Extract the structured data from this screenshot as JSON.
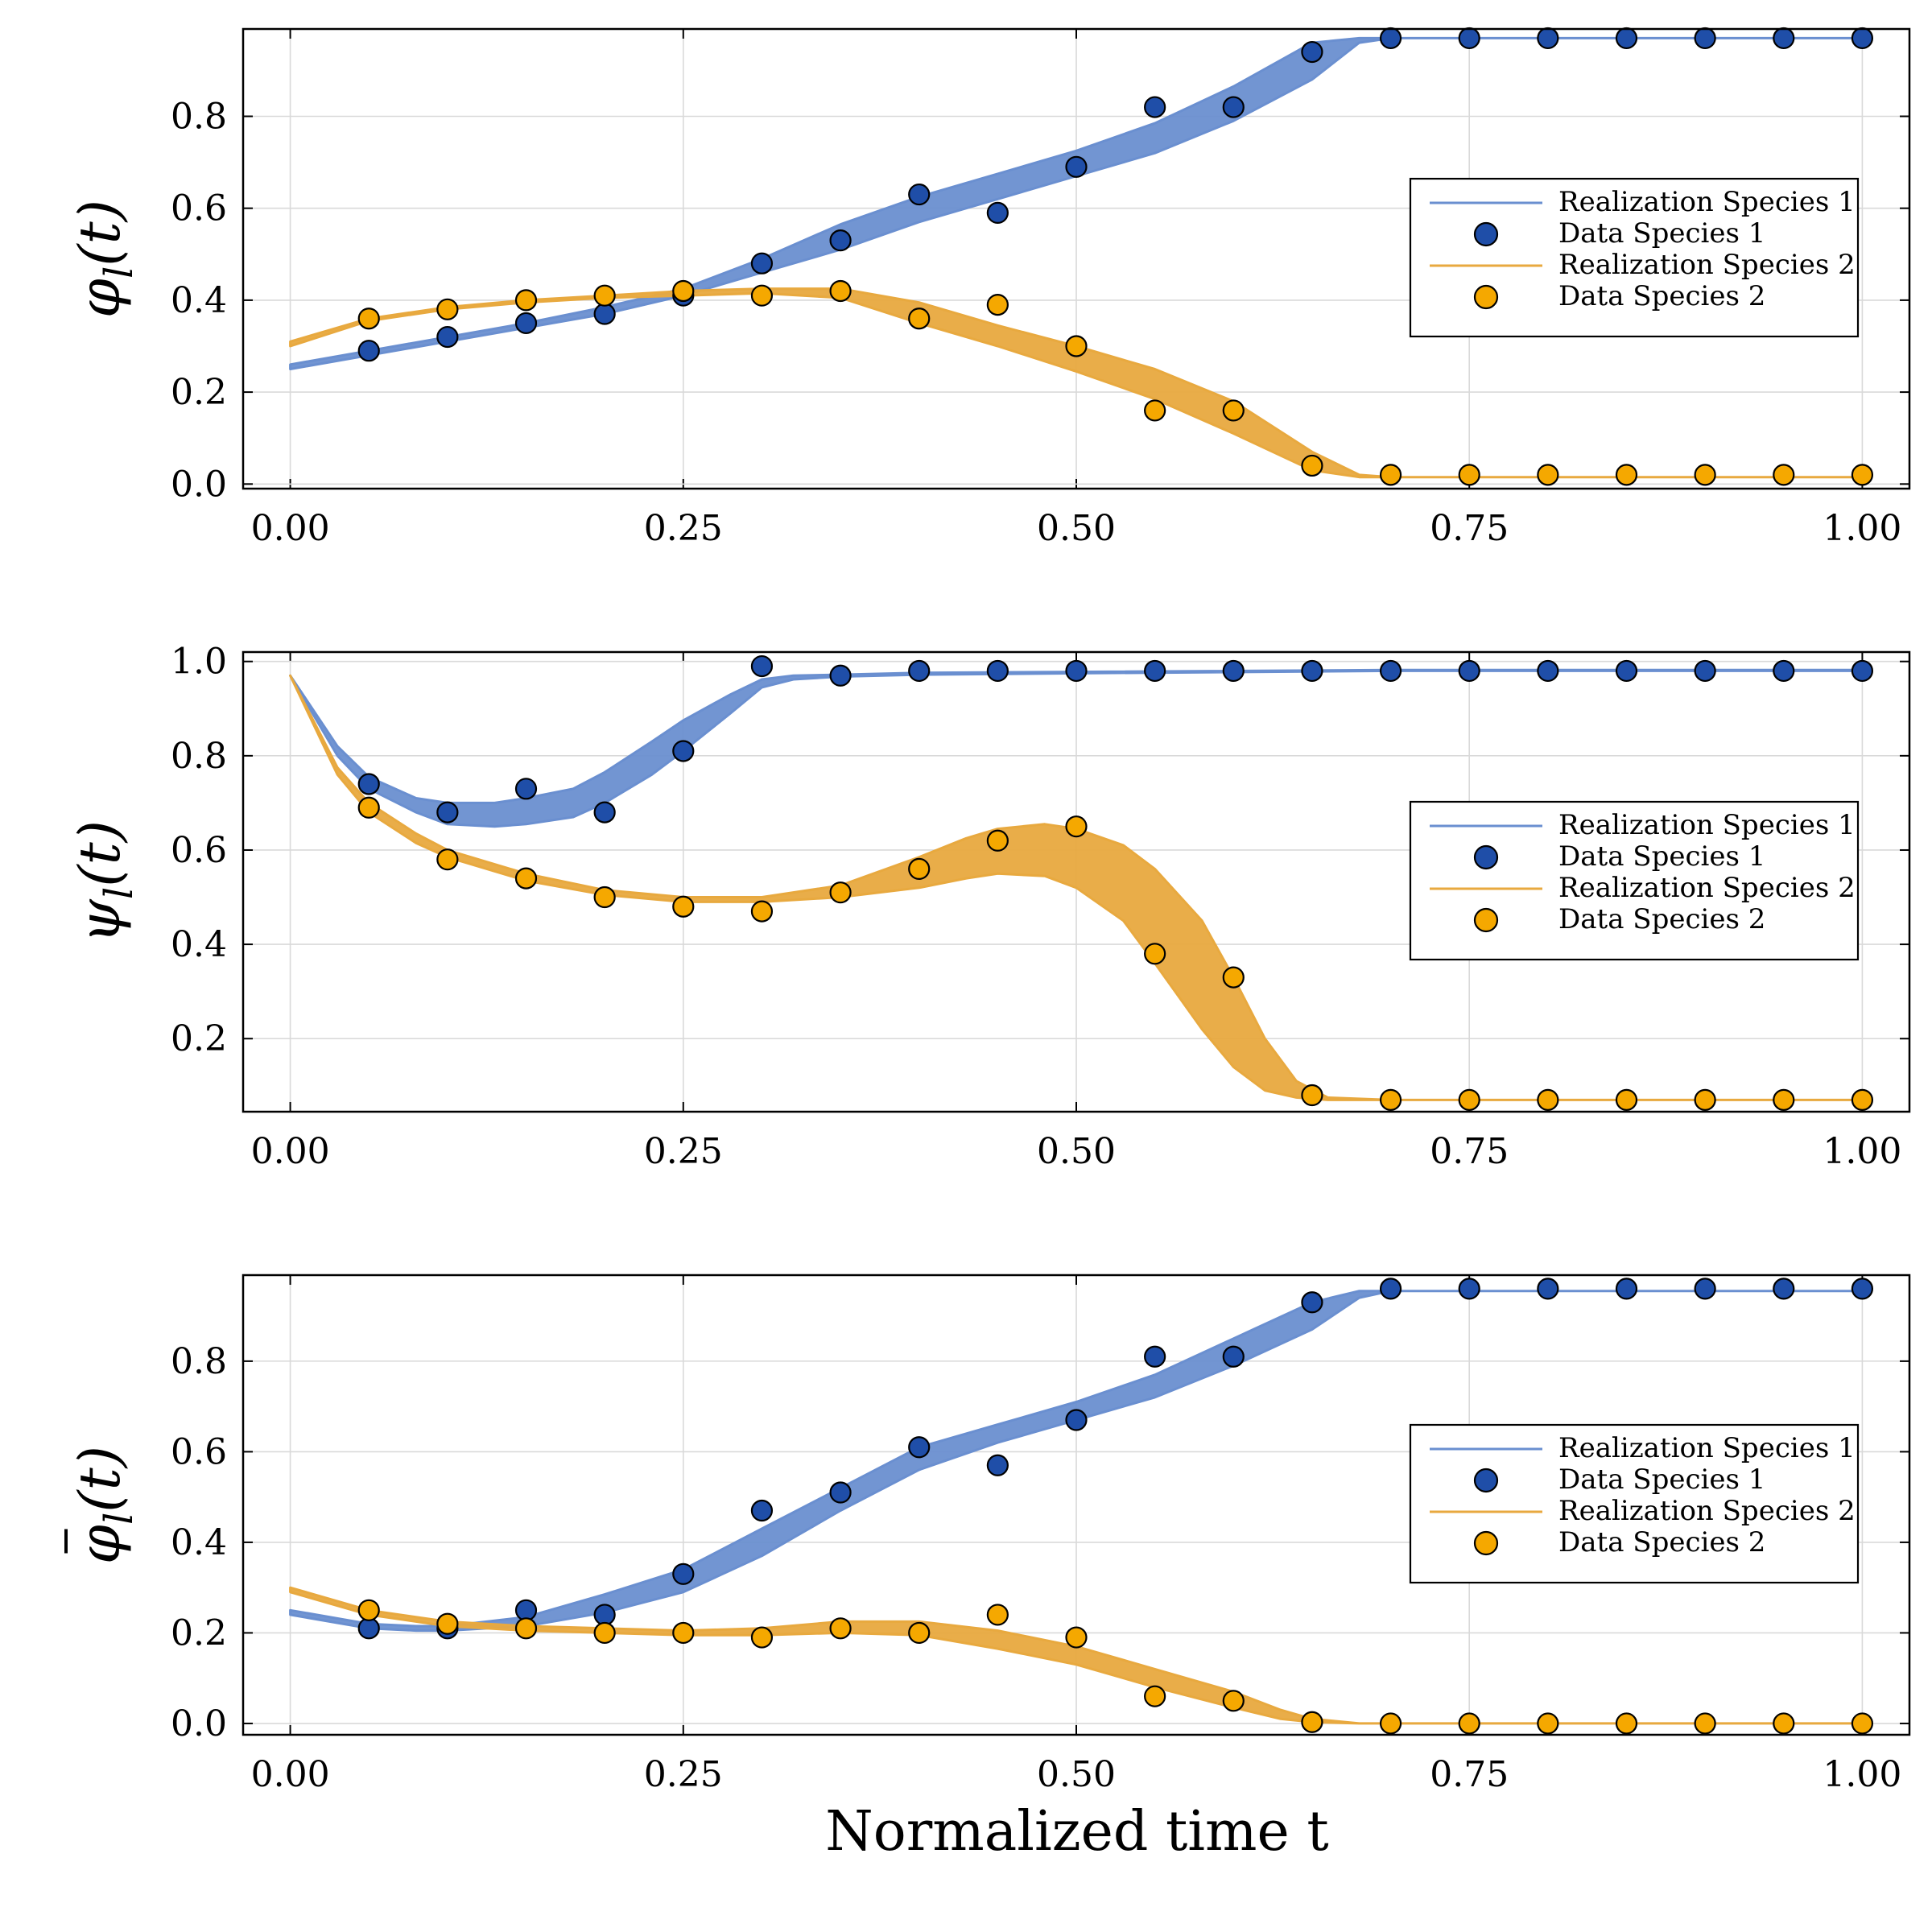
{
  "xlabel": "Normalized time t",
  "colors": {
    "species1_band": "#6a8fd0",
    "species1_marker": "#1f4ea8",
    "species2_band": "#e8a93f",
    "species2_marker": "#f5a800",
    "marker_edge": "#000000",
    "grid": "#d9d9d9"
  },
  "legend": [
    "Realization Species 1",
    "Data Species 1",
    "Realization Species 2",
    "Data Species 2"
  ],
  "chart_data": [
    {
      "type": "line",
      "ylabel_symbol": "φ",
      "ylabel_sub": "l",
      "ylabel_arg": "(t)",
      "overline": false,
      "xlim": [
        -0.03,
        1.03
      ],
      "ylim": [
        -0.01,
        0.99
      ],
      "xticks": [
        "0.00",
        "0.25",
        "0.50",
        "0.75",
        "1.00"
      ],
      "yticks": [
        "0.0",
        "0.2",
        "0.4",
        "0.6",
        "0.8"
      ],
      "data_x": [
        0.05,
        0.1,
        0.15,
        0.2,
        0.25,
        0.3,
        0.35,
        0.4,
        0.45,
        0.5,
        0.55,
        0.6,
        0.65,
        0.7,
        0.75,
        0.8,
        0.85,
        0.9,
        0.95,
        1.0
      ],
      "series": [
        {
          "name": "Species 1",
          "band_x": [
            0.0,
            0.05,
            0.1,
            0.15,
            0.2,
            0.25,
            0.3,
            0.35,
            0.4,
            0.45,
            0.5,
            0.55,
            0.6,
            0.65,
            0.68,
            0.7,
            1.0
          ],
          "band_lo": [
            0.25,
            0.28,
            0.31,
            0.34,
            0.37,
            0.41,
            0.46,
            0.51,
            0.57,
            0.62,
            0.67,
            0.72,
            0.79,
            0.88,
            0.96,
            0.97,
            0.97
          ],
          "band_hi": [
            0.26,
            0.29,
            0.32,
            0.35,
            0.385,
            0.425,
            0.49,
            0.565,
            0.625,
            0.675,
            0.725,
            0.785,
            0.865,
            0.96,
            0.97,
            0.97,
            0.97
          ],
          "data_y": [
            0.29,
            0.32,
            0.35,
            0.37,
            0.41,
            0.48,
            0.53,
            0.63,
            0.59,
            0.69,
            0.82,
            0.82,
            0.94,
            0.97,
            0.97,
            0.97,
            0.97,
            0.97,
            0.97,
            0.97
          ]
        },
        {
          "name": "Species 2",
          "band_x": [
            0.0,
            0.05,
            0.1,
            0.15,
            0.2,
            0.25,
            0.3,
            0.35,
            0.4,
            0.45,
            0.5,
            0.55,
            0.6,
            0.65,
            0.68,
            0.7,
            1.0
          ],
          "band_lo": [
            0.3,
            0.355,
            0.38,
            0.395,
            0.405,
            0.41,
            0.415,
            0.405,
            0.35,
            0.3,
            0.245,
            0.185,
            0.11,
            0.03,
            0.015,
            0.015,
            0.015
          ],
          "band_hi": [
            0.31,
            0.36,
            0.385,
            0.4,
            0.41,
            0.42,
            0.425,
            0.425,
            0.395,
            0.345,
            0.3,
            0.25,
            0.18,
            0.07,
            0.02,
            0.015,
            0.015
          ],
          "data_y": [
            0.36,
            0.38,
            0.4,
            0.41,
            0.42,
            0.41,
            0.42,
            0.36,
            0.39,
            0.3,
            0.16,
            0.16,
            0.04,
            0.02,
            0.02,
            0.02,
            0.02,
            0.02,
            0.02,
            0.02
          ]
        }
      ]
    },
    {
      "type": "line",
      "ylabel_symbol": "ψ",
      "ylabel_sub": "l",
      "ylabel_arg": "(t)",
      "overline": false,
      "xlim": [
        -0.03,
        1.03
      ],
      "ylim": [
        0.045,
        1.02
      ],
      "xticks": [
        "0.00",
        "0.25",
        "0.50",
        "0.75",
        "1.00"
      ],
      "yticks": [
        "0.2",
        "0.4",
        "0.6",
        "0.8",
        "1.0"
      ],
      "data_x": [
        0.05,
        0.1,
        0.15,
        0.2,
        0.25,
        0.3,
        0.35,
        0.4,
        0.45,
        0.5,
        0.55,
        0.6,
        0.65,
        0.7,
        0.75,
        0.8,
        0.85,
        0.9,
        0.95,
        1.0
      ],
      "series": [
        {
          "name": "Species 1",
          "band_x": [
            0.0,
            0.03,
            0.05,
            0.08,
            0.1,
            0.13,
            0.15,
            0.18,
            0.2,
            0.23,
            0.25,
            0.28,
            0.3,
            0.32,
            0.35,
            0.4,
            0.5,
            0.7,
            1.0
          ],
          "band_lo": [
            0.97,
            0.8,
            0.73,
            0.68,
            0.655,
            0.65,
            0.655,
            0.67,
            0.7,
            0.76,
            0.81,
            0.89,
            0.945,
            0.962,
            0.968,
            0.972,
            0.975,
            0.98,
            0.98
          ],
          "band_hi": [
            0.97,
            0.82,
            0.755,
            0.71,
            0.7,
            0.7,
            0.71,
            0.73,
            0.765,
            0.83,
            0.875,
            0.93,
            0.962,
            0.97,
            0.972,
            0.976,
            0.978,
            0.982,
            0.982
          ],
          "data_y": [
            0.74,
            0.68,
            0.73,
            0.68,
            0.81,
            0.99,
            0.97,
            0.98,
            0.98,
            0.98,
            0.98,
            0.98,
            0.98,
            0.98,
            0.98,
            0.98,
            0.98,
            0.98,
            0.98,
            0.98
          ]
        },
        {
          "name": "Species 2",
          "band_x": [
            0.0,
            0.03,
            0.05,
            0.08,
            0.1,
            0.15,
            0.2,
            0.25,
            0.3,
            0.35,
            0.4,
            0.43,
            0.45,
            0.48,
            0.5,
            0.53,
            0.55,
            0.58,
            0.6,
            0.62,
            0.64,
            0.66,
            0.7,
            1.0
          ],
          "band_lo": [
            0.97,
            0.76,
            0.68,
            0.615,
            0.585,
            0.535,
            0.505,
            0.49,
            0.49,
            0.5,
            0.52,
            0.54,
            0.55,
            0.545,
            0.52,
            0.45,
            0.36,
            0.22,
            0.14,
            0.09,
            0.075,
            0.07,
            0.07,
            0.07
          ],
          "band_hi": [
            0.97,
            0.775,
            0.7,
            0.635,
            0.6,
            0.55,
            0.515,
            0.5,
            0.5,
            0.525,
            0.585,
            0.625,
            0.645,
            0.655,
            0.645,
            0.61,
            0.56,
            0.45,
            0.33,
            0.2,
            0.11,
            0.075,
            0.07,
            0.07
          ],
          "data_y": [
            0.69,
            0.58,
            0.54,
            0.5,
            0.48,
            0.47,
            0.51,
            0.56,
            0.62,
            0.65,
            0.38,
            0.33,
            0.08,
            0.07,
            0.07,
            0.07,
            0.07,
            0.07,
            0.07,
            0.07
          ]
        }
      ]
    },
    {
      "type": "line",
      "ylabel_symbol": "φ",
      "ylabel_sub": "l",
      "ylabel_arg": "(t)",
      "overline": true,
      "xlim": [
        -0.03,
        1.03
      ],
      "ylim": [
        -0.025,
        0.99
      ],
      "xticks": [
        "0.00",
        "0.25",
        "0.50",
        "0.75",
        "1.00"
      ],
      "yticks": [
        "0.0",
        "0.2",
        "0.4",
        "0.6",
        "0.8"
      ],
      "data_x": [
        0.05,
        0.1,
        0.15,
        0.2,
        0.25,
        0.3,
        0.35,
        0.4,
        0.45,
        0.5,
        0.55,
        0.6,
        0.65,
        0.7,
        0.75,
        0.8,
        0.85,
        0.9,
        0.95,
        1.0
      ],
      "series": [
        {
          "name": "Species 1",
          "band_x": [
            0.0,
            0.05,
            0.08,
            0.1,
            0.15,
            0.2,
            0.25,
            0.3,
            0.35,
            0.4,
            0.45,
            0.5,
            0.55,
            0.6,
            0.65,
            0.68,
            0.7,
            1.0
          ],
          "band_lo": [
            0.24,
            0.21,
            0.205,
            0.205,
            0.215,
            0.245,
            0.29,
            0.37,
            0.47,
            0.56,
            0.62,
            0.67,
            0.72,
            0.79,
            0.87,
            0.94,
            0.955,
            0.955
          ],
          "band_hi": [
            0.25,
            0.22,
            0.215,
            0.215,
            0.235,
            0.285,
            0.34,
            0.43,
            0.52,
            0.61,
            0.66,
            0.71,
            0.77,
            0.85,
            0.93,
            0.955,
            0.955,
            0.955
          ],
          "data_y": [
            0.21,
            0.21,
            0.25,
            0.24,
            0.33,
            0.47,
            0.51,
            0.61,
            0.57,
            0.67,
            0.81,
            0.81,
            0.93,
            0.96,
            0.96,
            0.96,
            0.96,
            0.96,
            0.96,
            0.96
          ]
        },
        {
          "name": "Species 2",
          "band_x": [
            0.0,
            0.05,
            0.1,
            0.15,
            0.2,
            0.25,
            0.3,
            0.35,
            0.4,
            0.45,
            0.5,
            0.55,
            0.6,
            0.63,
            0.65,
            0.68,
            1.0
          ],
          "band_lo": [
            0.29,
            0.24,
            0.215,
            0.205,
            0.2,
            0.195,
            0.195,
            0.2,
            0.195,
            0.165,
            0.13,
            0.08,
            0.035,
            0.01,
            0.003,
            0.0,
            0.0
          ],
          "band_hi": [
            0.3,
            0.25,
            0.225,
            0.215,
            0.21,
            0.205,
            0.21,
            0.225,
            0.225,
            0.205,
            0.17,
            0.12,
            0.07,
            0.03,
            0.01,
            0.0,
            0.0
          ],
          "data_y": [
            0.25,
            0.22,
            0.21,
            0.2,
            0.2,
            0.19,
            0.21,
            0.2,
            0.24,
            0.19,
            0.06,
            0.05,
            0.003,
            0.0,
            0.0,
            0.0,
            0.0,
            0.0,
            0.0,
            0.0
          ]
        }
      ]
    }
  ]
}
